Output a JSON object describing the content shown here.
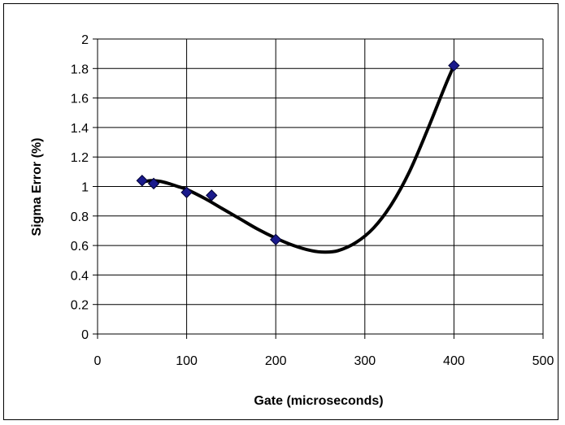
{
  "chart_data": {
    "type": "scatter",
    "title": "",
    "xlabel": "Gate (microseconds)",
    "ylabel": "Sigma Error (%)",
    "xlim": [
      0,
      500
    ],
    "ylim": [
      0,
      2
    ],
    "x_ticks": [
      0,
      100,
      200,
      300,
      400,
      500
    ],
    "y_ticks": [
      0,
      0.2,
      0.4,
      0.6,
      0.8,
      1,
      1.2,
      1.4,
      1.6,
      1.8,
      2
    ],
    "x_tick_labels": [
      "0",
      "100",
      "200",
      "300",
      "400",
      "500"
    ],
    "y_tick_labels": [
      "0",
      "0.2",
      "0.4",
      "0.6",
      "0.8",
      "1",
      "1.2",
      "1.4",
      "1.6",
      "1.8",
      "2"
    ],
    "grid": true,
    "series": [
      {
        "x": [
          50,
          63,
          100,
          128,
          200,
          400
        ],
        "y": [
          1.04,
          1.02,
          0.96,
          0.94,
          0.64,
          1.82
        ],
        "marker": "diamond",
        "color": "#1a1a8c"
      }
    ],
    "trendline": {
      "type": "polynomial",
      "color": "#000000",
      "x": [
        50,
        60,
        70,
        80,
        90,
        100,
        120,
        140,
        160,
        180,
        200,
        220,
        240,
        255,
        270,
        290,
        310,
        330,
        350,
        370,
        390,
        400
      ],
      "y": [
        1.03,
        1.04,
        1.035,
        1.02,
        1.0,
        0.98,
        0.92,
        0.85,
        0.78,
        0.71,
        0.65,
        0.6,
        0.565,
        0.555,
        0.565,
        0.62,
        0.72,
        0.88,
        1.1,
        1.38,
        1.68,
        1.82
      ]
    }
  }
}
